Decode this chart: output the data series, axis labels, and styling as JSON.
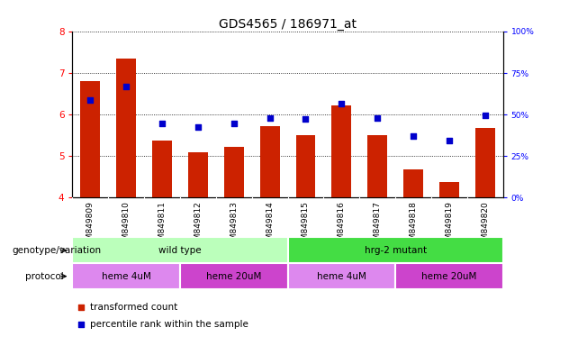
{
  "title": "GDS4565 / 186971_at",
  "samples": [
    "GSM849809",
    "GSM849810",
    "GSM849811",
    "GSM849812",
    "GSM849813",
    "GSM849814",
    "GSM849815",
    "GSM849816",
    "GSM849817",
    "GSM849818",
    "GSM849819",
    "GSM849820"
  ],
  "bar_values": [
    6.8,
    7.35,
    5.38,
    5.1,
    5.22,
    5.72,
    5.5,
    6.22,
    5.5,
    4.68,
    4.38,
    5.68
  ],
  "bar_bottom": 4.0,
  "blue_dot_values": [
    6.35,
    6.68,
    5.78,
    5.7,
    5.78,
    5.92,
    5.9,
    6.27,
    5.92,
    5.48,
    5.38,
    5.98
  ],
  "bar_color": "#cc2200",
  "dot_color": "#0000cc",
  "ylim": [
    4.0,
    8.0
  ],
  "y2lim": [
    0,
    100
  ],
  "yticks": [
    4,
    5,
    6,
    7,
    8
  ],
  "y2ticks": [
    0,
    25,
    50,
    75,
    100
  ],
  "y2ticklabels": [
    "0%",
    "25%",
    "50%",
    "75%",
    "100%"
  ],
  "genotype_groups": [
    {
      "label": "wild type",
      "start": 0,
      "end": 5,
      "color": "#bbffbb"
    },
    {
      "label": "hrg-2 mutant",
      "start": 6,
      "end": 11,
      "color": "#44dd44"
    }
  ],
  "protocol_groups": [
    {
      "label": "heme 4uM",
      "start": 0,
      "end": 2,
      "color": "#dd88ee"
    },
    {
      "label": "heme 20uM",
      "start": 3,
      "end": 5,
      "color": "#cc44cc"
    },
    {
      "label": "heme 4uM",
      "start": 6,
      "end": 8,
      "color": "#dd88ee"
    },
    {
      "label": "heme 20uM",
      "start": 9,
      "end": 11,
      "color": "#cc44cc"
    }
  ],
  "legend_items": [
    {
      "label": "transformed count",
      "color": "#cc2200"
    },
    {
      "label": "percentile rank within the sample",
      "color": "#0000cc"
    }
  ],
  "xlabel_genotype": "genotype/variation",
  "xlabel_protocol": "protocol",
  "title_fontsize": 10,
  "tick_fontsize": 6.5,
  "label_fontsize": 7.5
}
